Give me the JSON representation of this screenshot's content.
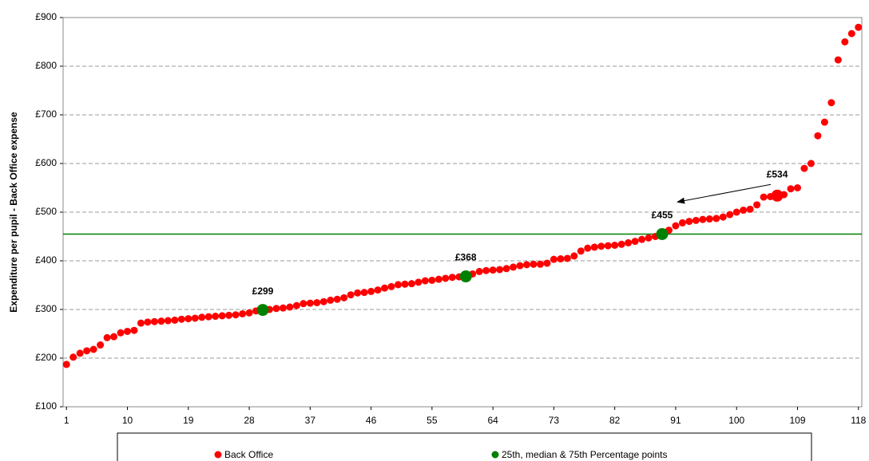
{
  "chart_data": {
    "type": "scatter",
    "y_label": "Expenditure per pupil - Back Office expense",
    "xlim": [
      0.5,
      118.5
    ],
    "xticks": [
      1,
      10,
      19,
      28,
      37,
      46,
      55,
      64,
      73,
      82,
      91,
      100,
      109,
      118
    ],
    "ylim": [
      100,
      900
    ],
    "yticks": [
      {
        "value": 100,
        "label": "£100"
      },
      {
        "value": 200,
        "label": "£200"
      },
      {
        "value": 300,
        "label": "£300"
      },
      {
        "value": 400,
        "label": "£400"
      },
      {
        "value": 500,
        "label": "£500"
      },
      {
        "value": 600,
        "label": "£600"
      },
      {
        "value": 700,
        "label": "£700"
      },
      {
        "value": 800,
        "label": "£800"
      },
      {
        "value": 900,
        "label": "£900"
      }
    ],
    "grid": true,
    "series": [
      {
        "name": "Back Office",
        "color": "#ff0000",
        "x": [
          1,
          2,
          3,
          4,
          5,
          6,
          7,
          8,
          9,
          10,
          11,
          12,
          13,
          14,
          15,
          16,
          17,
          18,
          19,
          20,
          21,
          22,
          23,
          24,
          25,
          26,
          27,
          28,
          29,
          30,
          31,
          32,
          33,
          34,
          35,
          36,
          37,
          38,
          39,
          40,
          41,
          42,
          43,
          44,
          45,
          46,
          47,
          48,
          49,
          50,
          51,
          52,
          53,
          54,
          55,
          56,
          57,
          58,
          59,
          60,
          61,
          62,
          63,
          64,
          65,
          66,
          67,
          68,
          69,
          70,
          71,
          72,
          73,
          74,
          75,
          76,
          77,
          78,
          79,
          80,
          81,
          82,
          83,
          84,
          85,
          86,
          87,
          88,
          89,
          90,
          91,
          92,
          93,
          94,
          95,
          96,
          97,
          98,
          99,
          100,
          101,
          102,
          103,
          104,
          105,
          106,
          107,
          108,
          109,
          110,
          111,
          112,
          113,
          114,
          115,
          116,
          117,
          118
        ],
        "values": [
          187,
          202,
          210,
          215,
          218,
          227,
          242,
          244,
          252,
          255,
          257,
          272,
          274,
          275,
          276,
          277,
          278,
          280,
          281,
          282,
          284,
          285,
          286,
          287,
          288,
          289,
          291,
          293,
          297,
          299,
          300,
          302,
          303,
          305,
          308,
          312,
          313,
          314,
          316,
          319,
          321,
          324,
          330,
          334,
          335,
          337,
          340,
          344,
          347,
          351,
          352,
          353,
          356,
          359,
          360,
          362,
          364,
          366,
          367,
          368,
          373,
          378,
          380,
          381,
          382,
          384,
          387,
          390,
          392,
          393,
          393,
          395,
          403,
          404,
          405,
          410,
          420,
          426,
          428,
          430,
          431,
          432,
          434,
          437,
          440,
          444,
          447,
          450,
          455,
          463,
          472,
          478,
          481,
          483,
          485,
          486,
          487,
          490,
          495,
          500,
          504,
          506,
          515,
          531,
          532,
          534,
          536,
          548,
          550,
          590,
          600,
          657,
          685,
          725,
          813,
          850,
          867,
          880
        ]
      },
      {
        "name": "25th, median & 75th Percentage points",
        "color": "#008000",
        "x": [
          30,
          60,
          89
        ],
        "values": [
          299,
          368,
          455
        ],
        "value_labels": [
          "£299",
          "£368",
          "£455"
        ]
      }
    ],
    "annotations": [
      {
        "text": "£534",
        "x": 106,
        "y": 534
      }
    ],
    "reference_line": {
      "value": 455,
      "color": "#008000"
    }
  }
}
